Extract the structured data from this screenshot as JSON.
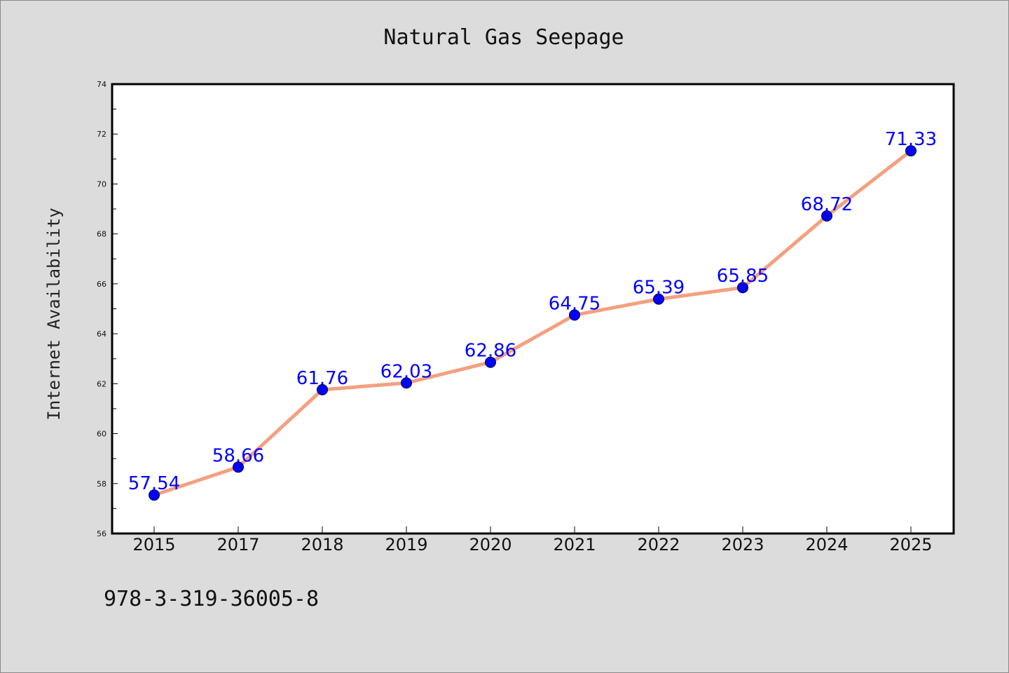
{
  "chart_data": {
    "type": "line",
    "title": "Natural Gas Seepage",
    "xlabel": "",
    "ylabel": "Internet Availability",
    "categories": [
      "2015",
      "2017",
      "2018",
      "2019",
      "2020",
      "2021",
      "2022",
      "2023",
      "2024",
      "2025"
    ],
    "series": [
      {
        "values": [
          57.54,
          58.66,
          61.76,
          62.03,
          62.86,
          64.75,
          65.39,
          65.85,
          68.72,
          71.33
        ],
        "labels": [
          "57.54",
          "58.66",
          "61.76",
          "62.03",
          "62.86",
          "64.75",
          "65.39",
          "65.85",
          "68.72",
          "71.33"
        ]
      }
    ],
    "ylim": [
      56,
      74
    ],
    "yticks": [
      "56",
      "58",
      "60",
      "62",
      "64",
      "66",
      "68",
      "70",
      "72",
      "74"
    ],
    "grid": false,
    "legend": "none",
    "colors": {
      "line": "#f4a07f",
      "marker": "#0000ff",
      "data_label": "#0000ff",
      "background": "#dcdcdc",
      "plot_background": "#ffffff"
    }
  },
  "footnote": "978-3-319-36005-8"
}
